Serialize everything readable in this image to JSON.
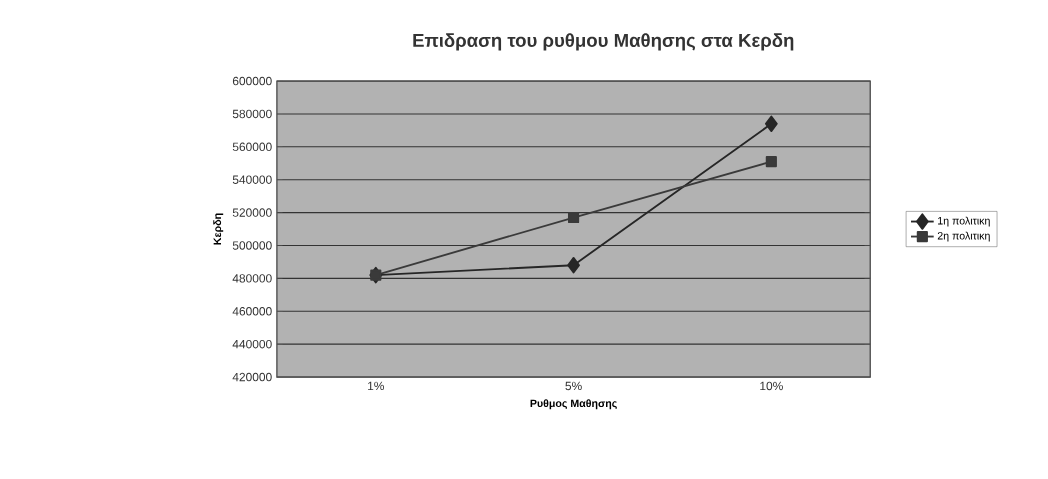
{
  "chart_data": {
    "type": "line",
    "title": "Επιδραση του ρυθμου Μαθησης στα Κερδη",
    "xlabel": "Ρυθμος Μαθησης",
    "ylabel": "Κερδη",
    "categories": [
      "1%",
      "5%",
      "10%"
    ],
    "series": [
      {
        "name": "1η πολιτικη",
        "color": "#262626",
        "marker": "diamond",
        "values": [
          482000,
          488000,
          574000
        ]
      },
      {
        "name": "2η πολιτικη",
        "color": "#3a3a3a",
        "marker": "square",
        "values": [
          482000,
          517000,
          551000
        ]
      }
    ],
    "ylim": [
      420000,
      600000
    ],
    "yticks": [
      420000,
      440000,
      460000,
      480000,
      500000,
      520000,
      540000,
      560000,
      580000,
      600000
    ],
    "grid": "y",
    "legend": "right",
    "line_style": "solid"
  }
}
